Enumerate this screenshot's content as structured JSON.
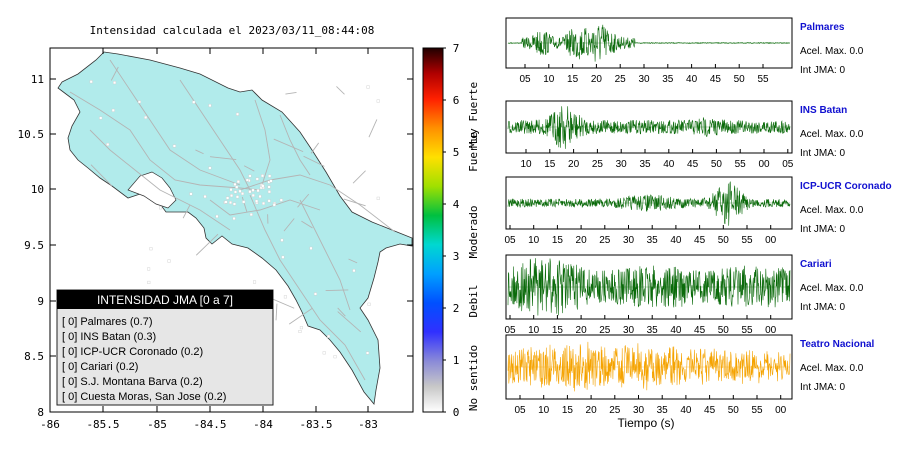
{
  "map": {
    "title": "Intensidad calculada el 2023/03/11_08:44:08",
    "chart_data": {
      "type": "scatter",
      "x_ticks": [
        "-86",
        "-85.5",
        "-85",
        "-84.5",
        "-84",
        "-83.5",
        "-83"
      ],
      "y_ticks": [
        "11",
        "10.5",
        "10",
        "9.5",
        "9",
        "8.5",
        "8"
      ],
      "xlim": [
        -86,
        -82.7
      ],
      "ylim": [
        8,
        11.3
      ]
    },
    "colors": {
      "land": "#b1ebeb",
      "station": "#ffffff",
      "roads": "#b4b4b4"
    }
  },
  "colorbar": {
    "ticks": [
      "0",
      "1",
      "2",
      "3",
      "4",
      "5",
      "6",
      "7"
    ],
    "categories": [
      "No sentido",
      "Debil",
      "Moderado",
      "Fuerte",
      "Muy Fuerte"
    ],
    "range": [
      0,
      7
    ]
  },
  "legend": {
    "header": "INTENSIDAD JMA [0 a 7]",
    "items": [
      "[ 0]  Palmares (0.7)",
      "[ 0]  INS Batan (0.3)",
      "[ 0]  ICP-UCR Coronado (0.2)",
      "[ 0]  Cariari (0.2)",
      "[ 0]  S.J. Montana Barva (0.2)",
      "[ 0]  Cuesta Moras, San Jose (0.2)"
    ]
  },
  "traces": {
    "xlabel": "Tiempo (s)",
    "stations": [
      {
        "name": "Palmares",
        "acel": "Acel. Max. 0.0",
        "int": "Int JMA: 0",
        "color": "#0a6a0a",
        "ticks": [
          "05",
          "10",
          "15",
          "20",
          "25",
          "30",
          "35",
          "40",
          "45",
          "50",
          "55"
        ]
      },
      {
        "name": "INS Batan",
        "acel": "Acel. Max. 0.0",
        "int": "Int JMA: 0",
        "color": "#0a6a0a",
        "ticks": [
          "10",
          "15",
          "20",
          "25",
          "30",
          "35",
          "40",
          "45",
          "50",
          "55",
          "00",
          "05"
        ]
      },
      {
        "name": "ICP-UCR Coronado",
        "acel": "Acel. Max. 0.0",
        "int": "Int JMA: 0",
        "color": "#0a6a0a",
        "ticks": [
          "05",
          "10",
          "15",
          "20",
          "25",
          "30",
          "35",
          "40",
          "45",
          "50",
          "55",
          "00"
        ]
      },
      {
        "name": "Cariari",
        "acel": "Acel. Max. 0.0",
        "int": "Int JMA: 0",
        "color": "#0a6a0a",
        "ticks": [
          "05",
          "10",
          "15",
          "20",
          "25",
          "30",
          "35",
          "40",
          "45",
          "50",
          "55",
          "00"
        ]
      },
      {
        "name": "Teatro Nacional",
        "acel": "Acel. Max. 0.0",
        "int": "Int JMA: 0",
        "color": "#f5a300",
        "ticks": [
          "05",
          "10",
          "15",
          "20",
          "25",
          "30",
          "35",
          "40",
          "45",
          "50",
          "55",
          "00"
        ]
      }
    ]
  }
}
